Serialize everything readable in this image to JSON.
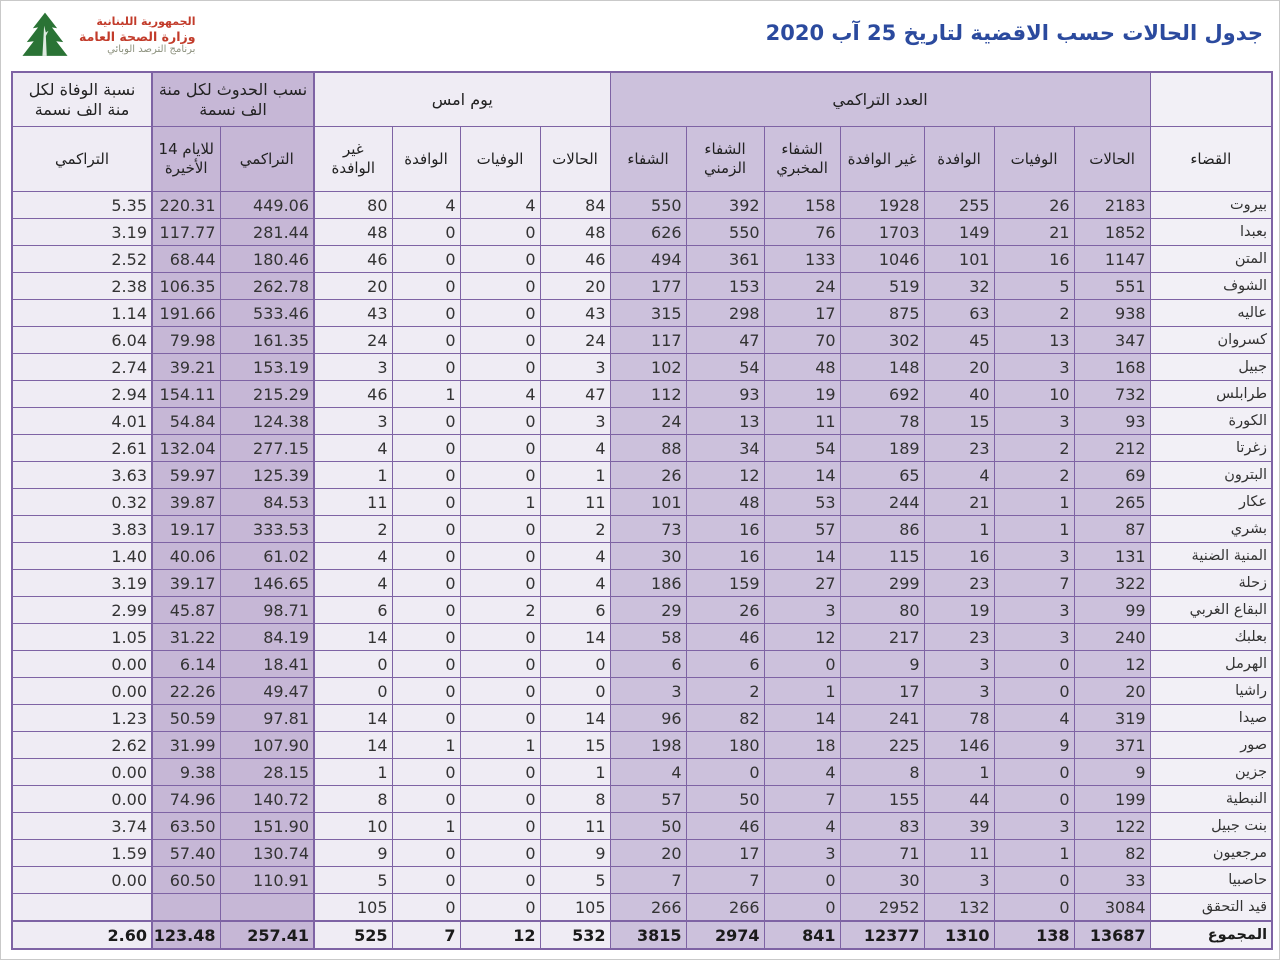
{
  "page": {
    "title": "جدول الحالات حسب الاقضية لتاريخ  25 آب 2020"
  },
  "logo": {
    "line1": "الجمهورية اللبنانية",
    "line2": "وزارة الصحة العامة",
    "line3": "برنامج الترصد الوبائي",
    "cedar_color": "#2a7335",
    "red_color": "#c23b2a"
  },
  "table": {
    "groups": {
      "cumulative": "العدد التراكمي",
      "yesterday": "يوم امس",
      "incidence": "نسب الحدوث لكل منة الف نسمة",
      "mortality": "نسبة الوفاة لكل منة الف نسمة"
    },
    "columns": {
      "district": "القضاء",
      "cases": "الحالات",
      "deaths": "الوفيات",
      "imported": "الوافدة",
      "non_imported": "غير الوافدة",
      "lab_recovery": "الشفاء المخبري",
      "time_recovery": "الشفاء الزمني",
      "recovery": "الشفاء",
      "cumulative_rate": "التراكمي",
      "last14": "للايام 14 الأخيرة"
    },
    "rows": [
      {
        "name": "بيروت",
        "cum": [
          2183,
          26,
          255,
          1928,
          158,
          392,
          550
        ],
        "yday": [
          84,
          4,
          4,
          80
        ],
        "inc": [
          "449.06",
          "220.31"
        ],
        "mort": "5.35"
      },
      {
        "name": "بعبدا",
        "cum": [
          1852,
          21,
          149,
          1703,
          76,
          550,
          626
        ],
        "yday": [
          48,
          0,
          0,
          48
        ],
        "inc": [
          "281.44",
          "117.77"
        ],
        "mort": "3.19"
      },
      {
        "name": "المتن",
        "cum": [
          1147,
          16,
          101,
          1046,
          133,
          361,
          494
        ],
        "yday": [
          46,
          0,
          0,
          46
        ],
        "inc": [
          "180.46",
          "68.44"
        ],
        "mort": "2.52"
      },
      {
        "name": "الشوف",
        "cum": [
          551,
          5,
          32,
          519,
          24,
          153,
          177
        ],
        "yday": [
          20,
          0,
          0,
          20
        ],
        "inc": [
          "262.78",
          "106.35"
        ],
        "mort": "2.38"
      },
      {
        "name": "عاليه",
        "cum": [
          938,
          2,
          63,
          875,
          17,
          298,
          315
        ],
        "yday": [
          43,
          0,
          0,
          43
        ],
        "inc": [
          "533.46",
          "191.66"
        ],
        "mort": "1.14"
      },
      {
        "name": "كسروان",
        "cum": [
          347,
          13,
          45,
          302,
          70,
          47,
          117
        ],
        "yday": [
          24,
          0,
          0,
          24
        ],
        "inc": [
          "161.35",
          "79.98"
        ],
        "mort": "6.04"
      },
      {
        "name": "جبيل",
        "cum": [
          168,
          3,
          20,
          148,
          48,
          54,
          102
        ],
        "yday": [
          3,
          0,
          0,
          3
        ],
        "inc": [
          "153.19",
          "39.21"
        ],
        "mort": "2.74"
      },
      {
        "name": "طرابلس",
        "cum": [
          732,
          10,
          40,
          692,
          19,
          93,
          112
        ],
        "yday": [
          47,
          4,
          1,
          46
        ],
        "inc": [
          "215.29",
          "154.11"
        ],
        "mort": "2.94"
      },
      {
        "name": "الكورة",
        "cum": [
          93,
          3,
          15,
          78,
          11,
          13,
          24
        ],
        "yday": [
          3,
          0,
          0,
          3
        ],
        "inc": [
          "124.38",
          "54.84"
        ],
        "mort": "4.01"
      },
      {
        "name": "زغرتا",
        "cum": [
          212,
          2,
          23,
          189,
          54,
          34,
          88
        ],
        "yday": [
          4,
          0,
          0,
          4
        ],
        "inc": [
          "277.15",
          "132.04"
        ],
        "mort": "2.61"
      },
      {
        "name": "البترون",
        "cum": [
          69,
          2,
          4,
          65,
          14,
          12,
          26
        ],
        "yday": [
          1,
          0,
          0,
          1
        ],
        "inc": [
          "125.39",
          "59.97"
        ],
        "mort": "3.63"
      },
      {
        "name": "عكار",
        "cum": [
          265,
          1,
          21,
          244,
          53,
          48,
          101
        ],
        "yday": [
          11,
          1,
          0,
          11
        ],
        "inc": [
          "84.53",
          "39.87"
        ],
        "mort": "0.32"
      },
      {
        "name": "بشري",
        "cum": [
          87,
          1,
          1,
          86,
          57,
          16,
          73
        ],
        "yday": [
          2,
          0,
          0,
          2
        ],
        "inc": [
          "333.53",
          "19.17"
        ],
        "mort": "3.83"
      },
      {
        "name": "المنية الضنية",
        "cum": [
          131,
          3,
          16,
          115,
          14,
          16,
          30
        ],
        "yday": [
          4,
          0,
          0,
          4
        ],
        "inc": [
          "61.02",
          "40.06"
        ],
        "mort": "1.40"
      },
      {
        "name": "زحلة",
        "cum": [
          322,
          7,
          23,
          299,
          27,
          159,
          186
        ],
        "yday": [
          4,
          0,
          0,
          4
        ],
        "inc": [
          "146.65",
          "39.17"
        ],
        "mort": "3.19"
      },
      {
        "name": "البقاع الغربي",
        "cum": [
          99,
          3,
          19,
          80,
          3,
          26,
          29
        ],
        "yday": [
          6,
          2,
          0,
          6
        ],
        "inc": [
          "98.71",
          "45.87"
        ],
        "mort": "2.99"
      },
      {
        "name": "بعلبك",
        "cum": [
          240,
          3,
          23,
          217,
          12,
          46,
          58
        ],
        "yday": [
          14,
          0,
          0,
          14
        ],
        "inc": [
          "84.19",
          "31.22"
        ],
        "mort": "1.05"
      },
      {
        "name": "الهرمل",
        "cum": [
          12,
          0,
          3,
          9,
          0,
          6,
          6
        ],
        "yday": [
          0,
          0,
          0,
          0
        ],
        "inc": [
          "18.41",
          "6.14"
        ],
        "mort": "0.00"
      },
      {
        "name": "راشيا",
        "cum": [
          20,
          0,
          3,
          17,
          1,
          2,
          3
        ],
        "yday": [
          0,
          0,
          0,
          0
        ],
        "inc": [
          "49.47",
          "22.26"
        ],
        "mort": "0.00"
      },
      {
        "name": "صيدا",
        "cum": [
          319,
          4,
          78,
          241,
          14,
          82,
          96
        ],
        "yday": [
          14,
          0,
          0,
          14
        ],
        "inc": [
          "97.81",
          "50.59"
        ],
        "mort": "1.23"
      },
      {
        "name": "صور",
        "cum": [
          371,
          9,
          146,
          225,
          18,
          180,
          198
        ],
        "yday": [
          15,
          1,
          1,
          14
        ],
        "inc": [
          "107.90",
          "31.99"
        ],
        "mort": "2.62"
      },
      {
        "name": "جزين",
        "cum": [
          9,
          0,
          1,
          8,
          4,
          0,
          4
        ],
        "yday": [
          1,
          0,
          0,
          1
        ],
        "inc": [
          "28.15",
          "9.38"
        ],
        "mort": "0.00"
      },
      {
        "name": "النبطية",
        "cum": [
          199,
          0,
          44,
          155,
          7,
          50,
          57
        ],
        "yday": [
          8,
          0,
          0,
          8
        ],
        "inc": [
          "140.72",
          "74.96"
        ],
        "mort": "0.00"
      },
      {
        "name": "بنت جبيل",
        "cum": [
          122,
          3,
          39,
          83,
          4,
          46,
          50
        ],
        "yday": [
          11,
          0,
          1,
          10
        ],
        "inc": [
          "151.90",
          "63.50"
        ],
        "mort": "3.74"
      },
      {
        "name": "مرجعيون",
        "cum": [
          82,
          1,
          11,
          71,
          3,
          17,
          20
        ],
        "yday": [
          9,
          0,
          0,
          9
        ],
        "inc": [
          "130.74",
          "57.40"
        ],
        "mort": "1.59"
      },
      {
        "name": "حاصبيا",
        "cum": [
          33,
          0,
          3,
          30,
          0,
          7,
          7
        ],
        "yday": [
          5,
          0,
          0,
          5
        ],
        "inc": [
          "110.91",
          "60.50"
        ],
        "mort": "0.00"
      },
      {
        "name": "قيد التحقق",
        "cum": [
          3084,
          0,
          132,
          2952,
          0,
          266,
          266
        ],
        "yday": [
          105,
          0,
          0,
          105
        ],
        "inc": [
          "",
          ""
        ],
        "mort": ""
      },
      {
        "name": "المجموع",
        "cum": [
          13687,
          138,
          1310,
          12377,
          841,
          2974,
          3815
        ],
        "yday": [
          532,
          12,
          7,
          525
        ],
        "inc": [
          "257.41",
          "123.48"
        ],
        "mort": "2.60",
        "is_total": true
      }
    ]
  },
  "colors": {
    "border": "#7e63a4",
    "cell_purple": "#ccc1dc",
    "cell_dark_purple": "#c6b7d6",
    "cell_light": "#efecf4",
    "title_blue": "#2b4a9e"
  }
}
